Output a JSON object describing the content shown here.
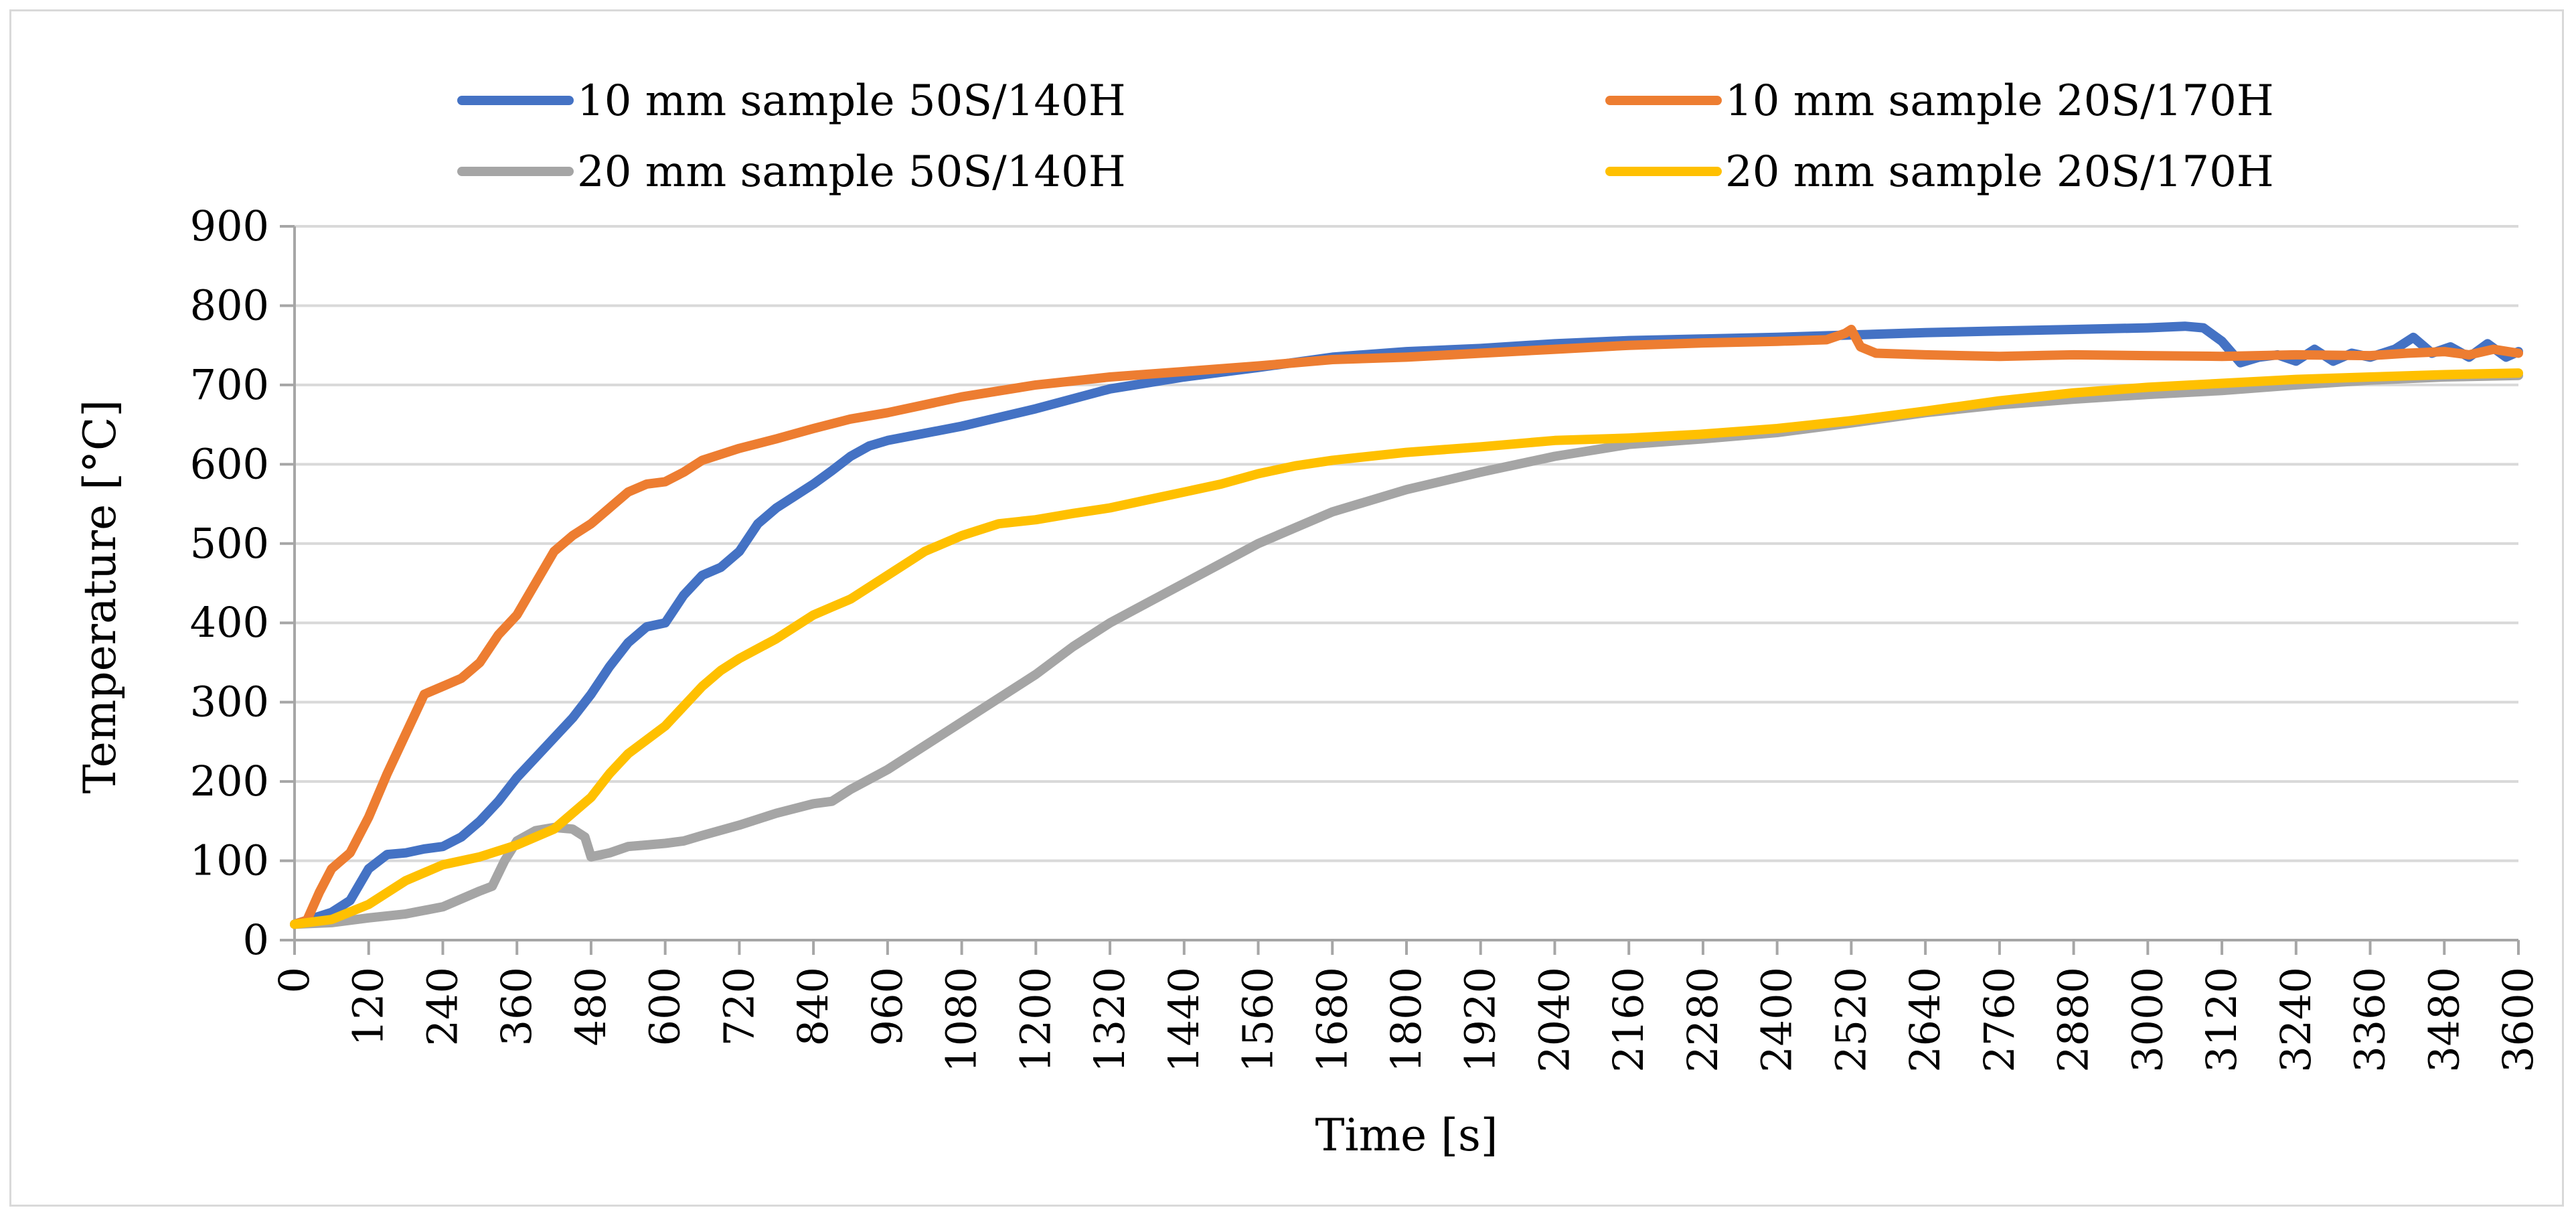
{
  "chart_data": {
    "type": "line",
    "title": "",
    "xlabel": "Time [s]",
    "ylabel": "Temperature [°C]",
    "xlim": [
      0,
      3600
    ],
    "ylim": [
      0,
      900
    ],
    "x_ticks": [
      0,
      120,
      240,
      360,
      480,
      600,
      720,
      840,
      960,
      1080,
      1200,
      1320,
      1440,
      1560,
      1680,
      1800,
      1920,
      2040,
      2160,
      2280,
      2400,
      2520,
      2640,
      2760,
      2880,
      3000,
      3120,
      3240,
      3360,
      3480,
      3600
    ],
    "y_ticks": [
      0,
      100,
      200,
      300,
      400,
      500,
      600,
      700,
      800,
      900
    ],
    "grid": "horizontal",
    "legend_position": "top",
    "series": [
      {
        "name": "10 mm sample 50S/140H",
        "color": "#4472c4",
        "points": [
          [
            0,
            20
          ],
          [
            60,
            35
          ],
          [
            90,
            50
          ],
          [
            120,
            90
          ],
          [
            150,
            108
          ],
          [
            180,
            110
          ],
          [
            210,
            115
          ],
          [
            240,
            118
          ],
          [
            270,
            130
          ],
          [
            300,
            150
          ],
          [
            330,
            175
          ],
          [
            360,
            205
          ],
          [
            390,
            230
          ],
          [
            420,
            255
          ],
          [
            450,
            280
          ],
          [
            480,
            310
          ],
          [
            510,
            345
          ],
          [
            540,
            375
          ],
          [
            570,
            395
          ],
          [
            600,
            400
          ],
          [
            630,
            435
          ],
          [
            660,
            460
          ],
          [
            690,
            470
          ],
          [
            720,
            490
          ],
          [
            750,
            525
          ],
          [
            780,
            545
          ],
          [
            810,
            560
          ],
          [
            840,
            575
          ],
          [
            870,
            592
          ],
          [
            900,
            610
          ],
          [
            930,
            623
          ],
          [
            960,
            630
          ],
          [
            1080,
            648
          ],
          [
            1200,
            670
          ],
          [
            1320,
            695
          ],
          [
            1440,
            710
          ],
          [
            1560,
            722
          ],
          [
            1680,
            735
          ],
          [
            1800,
            742
          ],
          [
            1920,
            746
          ],
          [
            2040,
            752
          ],
          [
            2160,
            756
          ],
          [
            2280,
            758
          ],
          [
            2400,
            760
          ],
          [
            2520,
            763
          ],
          [
            2640,
            766
          ],
          [
            2760,
            768
          ],
          [
            2880,
            770
          ],
          [
            3000,
            772
          ],
          [
            3060,
            774
          ],
          [
            3090,
            772
          ],
          [
            3120,
            755
          ],
          [
            3150,
            728
          ],
          [
            3180,
            735
          ],
          [
            3210,
            738
          ],
          [
            3240,
            730
          ],
          [
            3270,
            745
          ],
          [
            3300,
            730
          ],
          [
            3330,
            740
          ],
          [
            3360,
            735
          ],
          [
            3400,
            745
          ],
          [
            3430,
            760
          ],
          [
            3460,
            740
          ],
          [
            3490,
            748
          ],
          [
            3520,
            735
          ],
          [
            3550,
            752
          ],
          [
            3580,
            735
          ],
          [
            3600,
            742
          ]
        ]
      },
      {
        "name": "10 mm sample 20S/170H",
        "color": "#ed7d31",
        "points": [
          [
            0,
            20
          ],
          [
            20,
            25
          ],
          [
            40,
            60
          ],
          [
            60,
            90
          ],
          [
            90,
            110
          ],
          [
            120,
            155
          ],
          [
            150,
            210
          ],
          [
            180,
            260
          ],
          [
            210,
            310
          ],
          [
            240,
            320
          ],
          [
            270,
            330
          ],
          [
            300,
            350
          ],
          [
            330,
            385
          ],
          [
            360,
            410
          ],
          [
            390,
            450
          ],
          [
            420,
            490
          ],
          [
            450,
            510
          ],
          [
            480,
            525
          ],
          [
            510,
            545
          ],
          [
            540,
            565
          ],
          [
            570,
            575
          ],
          [
            600,
            578
          ],
          [
            630,
            590
          ],
          [
            660,
            605
          ],
          [
            720,
            620
          ],
          [
            780,
            632
          ],
          [
            840,
            645
          ],
          [
            900,
            657
          ],
          [
            960,
            665
          ],
          [
            1080,
            685
          ],
          [
            1200,
            700
          ],
          [
            1320,
            710
          ],
          [
            1440,
            717
          ],
          [
            1560,
            724
          ],
          [
            1680,
            732
          ],
          [
            1800,
            735
          ],
          [
            1920,
            740
          ],
          [
            2040,
            745
          ],
          [
            2160,
            750
          ],
          [
            2280,
            753
          ],
          [
            2400,
            755
          ],
          [
            2480,
            757
          ],
          [
            2510,
            765
          ],
          [
            2520,
            770
          ],
          [
            2535,
            748
          ],
          [
            2560,
            740
          ],
          [
            2640,
            738
          ],
          [
            2760,
            736
          ],
          [
            2880,
            738
          ],
          [
            3000,
            737
          ],
          [
            3120,
            736
          ],
          [
            3240,
            738
          ],
          [
            3360,
            737
          ],
          [
            3420,
            740
          ],
          [
            3480,
            742
          ],
          [
            3520,
            738
          ],
          [
            3560,
            745
          ],
          [
            3600,
            740
          ]
        ]
      },
      {
        "name": "20 mm sample 50S/140H",
        "color": "#a5a5a5",
        "points": [
          [
            0,
            20
          ],
          [
            60,
            22
          ],
          [
            120,
            28
          ],
          [
            180,
            33
          ],
          [
            240,
            42
          ],
          [
            300,
            62
          ],
          [
            320,
            68
          ],
          [
            340,
            100
          ],
          [
            360,
            125
          ],
          [
            390,
            138
          ],
          [
            420,
            142
          ],
          [
            450,
            140
          ],
          [
            470,
            130
          ],
          [
            480,
            105
          ],
          [
            510,
            110
          ],
          [
            540,
            118
          ],
          [
            570,
            120
          ],
          [
            600,
            122
          ],
          [
            630,
            125
          ],
          [
            660,
            132
          ],
          [
            720,
            145
          ],
          [
            780,
            160
          ],
          [
            840,
            172
          ],
          [
            870,
            175
          ],
          [
            900,
            190
          ],
          [
            960,
            215
          ],
          [
            1020,
            245
          ],
          [
            1080,
            275
          ],
          [
            1140,
            305
          ],
          [
            1200,
            335
          ],
          [
            1260,
            370
          ],
          [
            1320,
            400
          ],
          [
            1380,
            425
          ],
          [
            1440,
            450
          ],
          [
            1500,
            475
          ],
          [
            1560,
            500
          ],
          [
            1620,
            520
          ],
          [
            1680,
            540
          ],
          [
            1800,
            568
          ],
          [
            1920,
            590
          ],
          [
            2040,
            610
          ],
          [
            2160,
            625
          ],
          [
            2280,
            632
          ],
          [
            2400,
            640
          ],
          [
            2520,
            652
          ],
          [
            2640,
            665
          ],
          [
            2760,
            675
          ],
          [
            2880,
            682
          ],
          [
            3000,
            688
          ],
          [
            3120,
            693
          ],
          [
            3240,
            700
          ],
          [
            3360,
            706
          ],
          [
            3480,
            710
          ],
          [
            3600,
            712
          ]
        ]
      },
      {
        "name": "20 mm sample 20S/170H",
        "color": "#ffc000",
        "points": [
          [
            0,
            20
          ],
          [
            60,
            26
          ],
          [
            120,
            45
          ],
          [
            180,
            75
          ],
          [
            240,
            95
          ],
          [
            300,
            105
          ],
          [
            360,
            120
          ],
          [
            420,
            140
          ],
          [
            480,
            180
          ],
          [
            510,
            210
          ],
          [
            540,
            235
          ],
          [
            600,
            270
          ],
          [
            660,
            320
          ],
          [
            690,
            340
          ],
          [
            720,
            355
          ],
          [
            780,
            380
          ],
          [
            840,
            410
          ],
          [
            870,
            420
          ],
          [
            900,
            430
          ],
          [
            960,
            460
          ],
          [
            1020,
            490
          ],
          [
            1080,
            510
          ],
          [
            1140,
            525
          ],
          [
            1200,
            530
          ],
          [
            1260,
            538
          ],
          [
            1320,
            545
          ],
          [
            1380,
            555
          ],
          [
            1440,
            565
          ],
          [
            1500,
            575
          ],
          [
            1560,
            588
          ],
          [
            1620,
            598
          ],
          [
            1680,
            605
          ],
          [
            1800,
            615
          ],
          [
            1920,
            622
          ],
          [
            2040,
            630
          ],
          [
            2160,
            633
          ],
          [
            2280,
            638
          ],
          [
            2400,
            645
          ],
          [
            2520,
            655
          ],
          [
            2640,
            667
          ],
          [
            2760,
            680
          ],
          [
            2880,
            690
          ],
          [
            3000,
            697
          ],
          [
            3120,
            702
          ],
          [
            3240,
            707
          ],
          [
            3360,
            710
          ],
          [
            3480,
            713
          ],
          [
            3600,
            715
          ]
        ]
      }
    ]
  }
}
